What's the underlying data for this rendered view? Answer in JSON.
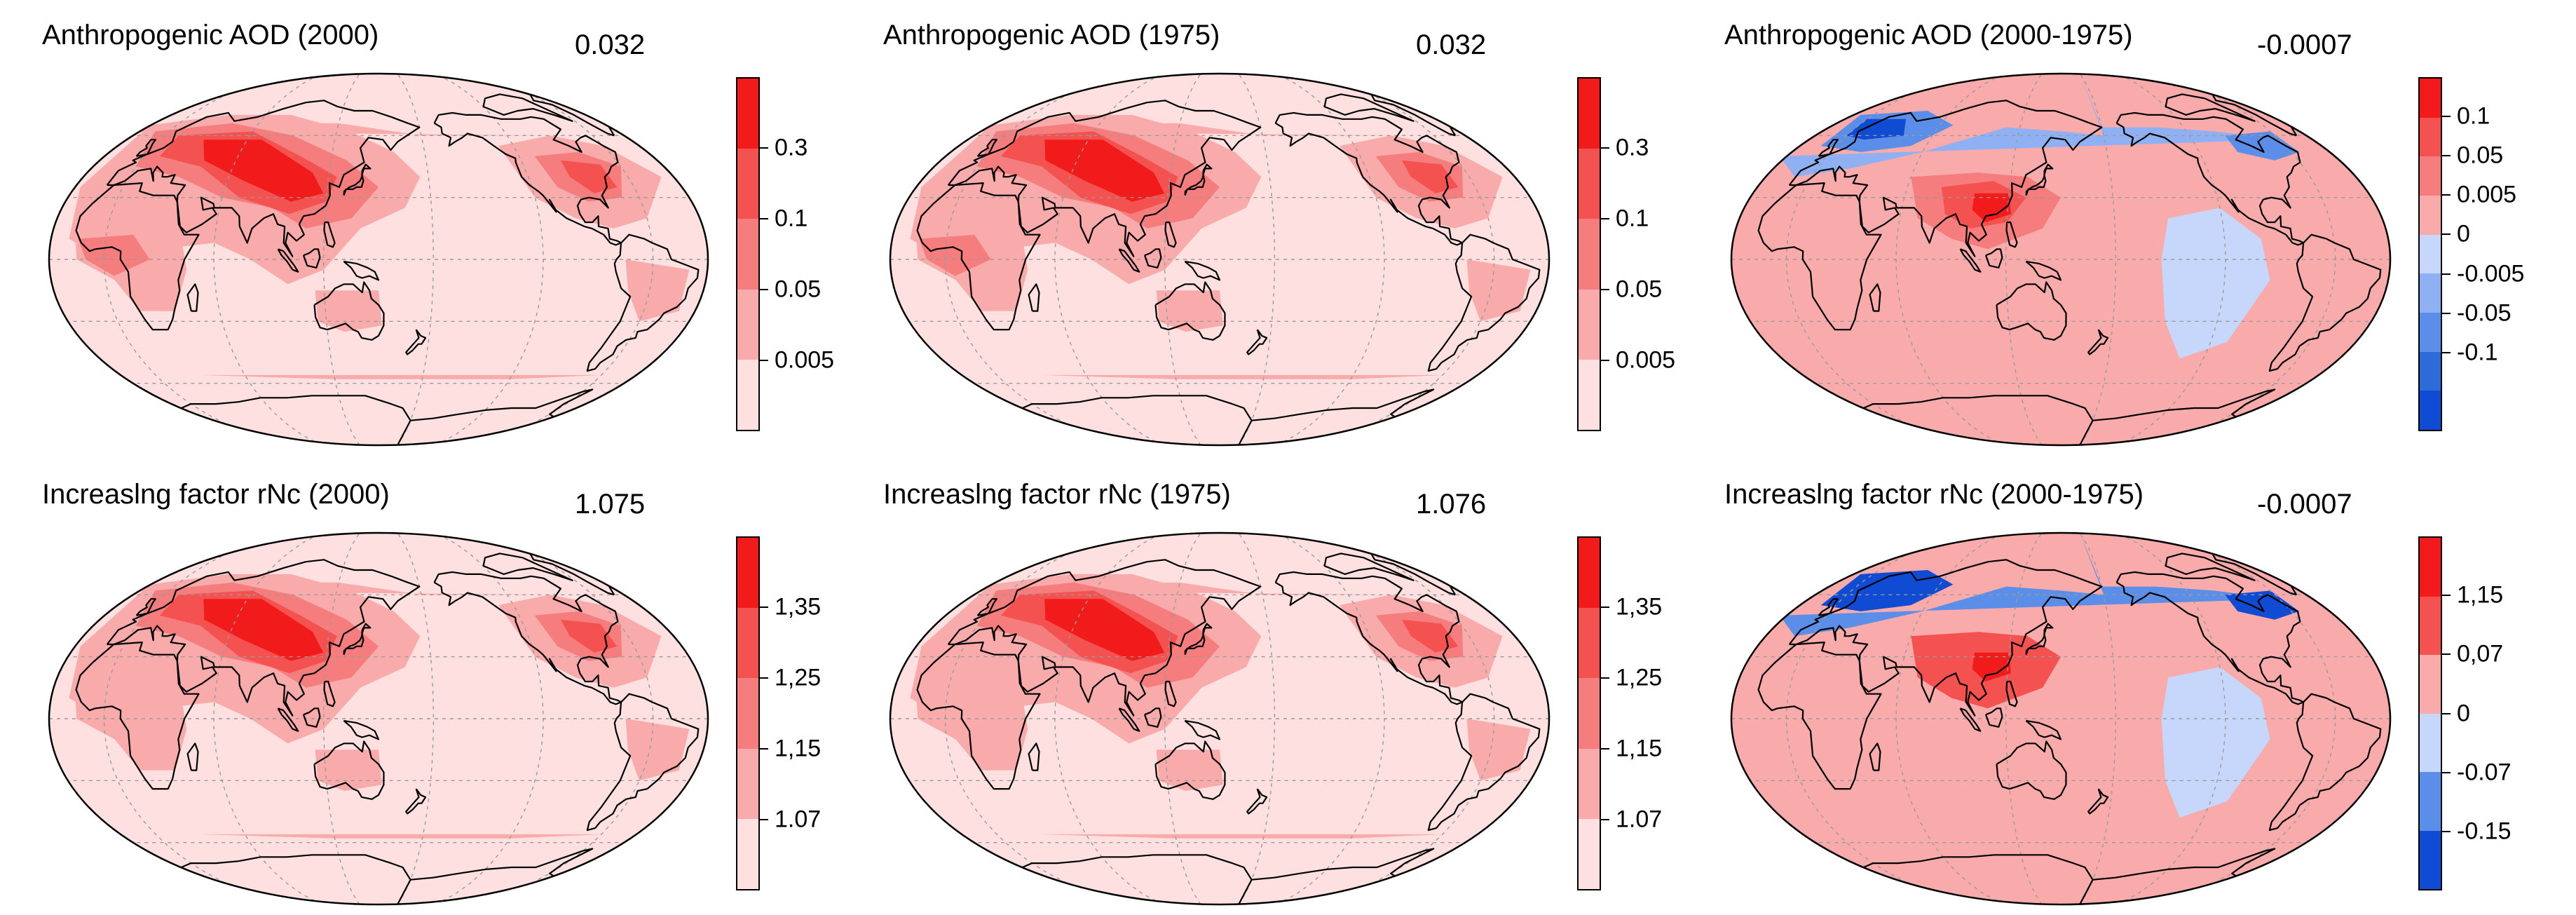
{
  "figure": {
    "panels": [
      {
        "id": "aod-2000",
        "title": "Anthropogenic AOD (2000)",
        "global_mean": "0.032",
        "scheme": "sequential",
        "colorbar": {
          "labels": [
            "0.3",
            "0.1",
            "0.05",
            "0.005"
          ],
          "colors": [
            "#f21b1b",
            "#f45151",
            "#f57d7d",
            "#f9aaaa",
            "#fde0df"
          ]
        }
      },
      {
        "id": "aod-1975",
        "title": "Anthropogenic AOD (1975)",
        "global_mean": "0.032",
        "scheme": "sequential",
        "colorbar": {
          "labels": [
            "0.3",
            "0.1",
            "0.05",
            "0.005"
          ],
          "colors": [
            "#f21b1b",
            "#f45151",
            "#f57d7d",
            "#f9aaaa",
            "#fde0df"
          ]
        }
      },
      {
        "id": "aod-diff",
        "title": "Anthropogenic AOD (2000-1975)",
        "global_mean": "-0.0007",
        "scheme": "diverging",
        "colorbar": {
          "labels": [
            "0.1",
            "0.05",
            "0.005",
            "0",
            "-0.005",
            "-0.05",
            "-0.1"
          ],
          "colors": [
            "#f21b1b",
            "#f45151",
            "#f57d7d",
            "#f9aaaa",
            "#c7d6fb",
            "#8fb1f4",
            "#5b8ee8",
            "#2f6ad9",
            "#0f4bd3"
          ]
        }
      },
      {
        "id": "rnc-2000",
        "title": "Increaslng factor rNc (2000)",
        "global_mean": "1.075",
        "scheme": "sequential",
        "colorbar": {
          "labels": [
            "1,35",
            "1,25",
            "1,15",
            "1.07"
          ],
          "colors": [
            "#f21b1b",
            "#f45151",
            "#f57d7d",
            "#f9aaaa",
            "#fde0df"
          ]
        }
      },
      {
        "id": "rnc-1975",
        "title": "Increaslng factor rNc (1975)",
        "global_mean": "1.076",
        "scheme": "sequential",
        "colorbar": {
          "labels": [
            "1,35",
            "1,25",
            "1,15",
            "1.07"
          ],
          "colors": [
            "#f21b1b",
            "#f45151",
            "#f57d7d",
            "#f9aaaa",
            "#fde0df"
          ]
        }
      },
      {
        "id": "rnc-diff",
        "title": "Increaslng factor rNc (2000-1975)",
        "global_mean": "-0.0007",
        "scheme": "diverging",
        "colorbar": {
          "labels": [
            "1,15",
            "0,07",
            "0",
            "-0.07",
            "-0.15"
          ],
          "colors": [
            "#f21b1b",
            "#f45151",
            "#f9aaaa",
            "#c7d6fb",
            "#5b8ee8",
            "#0f4bd3"
          ]
        }
      }
    ]
  }
}
